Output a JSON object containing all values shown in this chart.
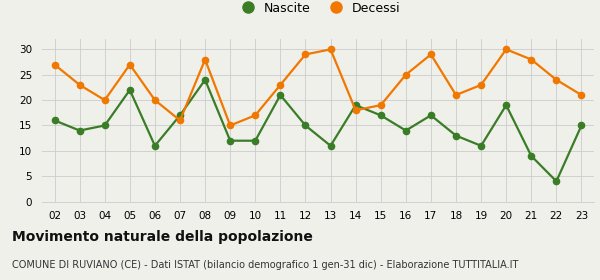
{
  "years": [
    "02",
    "03",
    "04",
    "05",
    "06",
    "07",
    "08",
    "09",
    "10",
    "11",
    "12",
    "13",
    "14",
    "15",
    "16",
    "17",
    "18",
    "19",
    "20",
    "21",
    "22",
    "23"
  ],
  "nascite": [
    16,
    14,
    15,
    22,
    11,
    17,
    24,
    12,
    12,
    21,
    15,
    11,
    19,
    17,
    14,
    17,
    13,
    11,
    19,
    9,
    4,
    15
  ],
  "decessi": [
    27,
    23,
    20,
    27,
    20,
    16,
    28,
    15,
    17,
    23,
    29,
    30,
    18,
    19,
    25,
    29,
    21,
    23,
    30,
    28,
    24,
    21
  ],
  "nascite_color": "#3a7d27",
  "decessi_color": "#f07800",
  "background_color": "#f0f0eb",
  "grid_color": "#cccccc",
  "title": "Movimento naturale della popolazione",
  "subtitle": "COMUNE DI RUVIANO (CE) - Dati ISTAT (bilancio demografico 1 gen-31 dic) - Elaborazione TUTTITALIA.IT",
  "ylabel_ticks": [
    0,
    5,
    10,
    15,
    20,
    25,
    30
  ],
  "ylim": [
    0,
    32
  ],
  "legend_nascite": "Nascite",
  "legend_decessi": "Decessi",
  "title_fontsize": 10,
  "subtitle_fontsize": 7,
  "tick_fontsize": 7.5,
  "legend_fontsize": 9,
  "marker_size": 4.5,
  "line_width": 1.6
}
